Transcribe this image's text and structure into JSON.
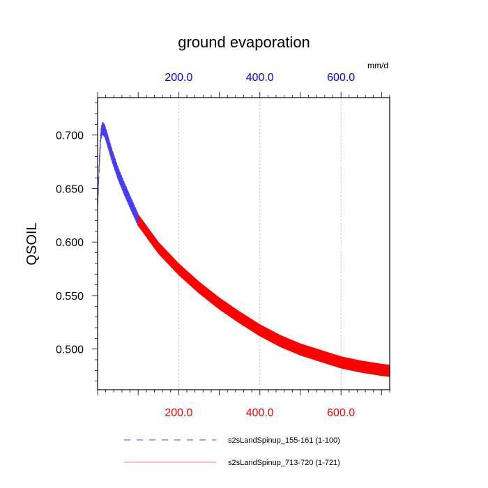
{
  "chart_data": {
    "type": "line",
    "title": "ground evaporation",
    "ylabel": "QSOIL",
    "top_axis_unit": "mm/d",
    "xlim": [
      0,
      720
    ],
    "ylim": [
      0.462,
      0.735
    ],
    "grid": {
      "x_dashed": true,
      "y": false
    },
    "x_ticks": [
      200,
      400,
      600
    ],
    "x_tick_labels": [
      "200.0",
      "400.0",
      "600.0"
    ],
    "y_ticks": [
      0.5,
      0.55,
      0.6,
      0.65,
      0.7
    ],
    "y_tick_labels": [
      "0.500",
      "0.550",
      "0.600",
      "0.650",
      "0.700"
    ],
    "colors": {
      "bottom_axis": "#ff0000",
      "top_axis": "#0000ff"
    },
    "legend": {
      "position": "bottom"
    },
    "series": [
      {
        "name": "s2sLandSpinup_155-161 (1-100)",
        "color": "#4040ff",
        "dash": "dashed",
        "x_range": [
          1,
          100
        ],
        "daily_amplitude": 0.012,
        "envelope": [
          [
            1,
            0.641
          ],
          [
            4,
            0.672
          ],
          [
            8,
            0.7
          ],
          [
            12,
            0.706
          ],
          [
            18,
            0.703
          ],
          [
            25,
            0.694
          ],
          [
            35,
            0.681
          ],
          [
            50,
            0.664
          ],
          [
            65,
            0.65
          ],
          [
            80,
            0.637
          ],
          [
            100,
            0.62
          ]
        ]
      },
      {
        "name": "s2sLandSpinup_713-720 (1-721)",
        "color": "#ff0000",
        "dash": "solid",
        "x_range": [
          1,
          721
        ],
        "daily_amplitude": 0.011,
        "envelope": [
          [
            1,
            0.641
          ],
          [
            4,
            0.672
          ],
          [
            8,
            0.7
          ],
          [
            12,
            0.706
          ],
          [
            18,
            0.703
          ],
          [
            25,
            0.694
          ],
          [
            35,
            0.681
          ],
          [
            50,
            0.664
          ],
          [
            65,
            0.65
          ],
          [
            80,
            0.637
          ],
          [
            100,
            0.62
          ],
          [
            150,
            0.594
          ],
          [
            200,
            0.574
          ],
          [
            250,
            0.557
          ],
          [
            300,
            0.542
          ],
          [
            350,
            0.529
          ],
          [
            400,
            0.517
          ],
          [
            450,
            0.507
          ],
          [
            500,
            0.499
          ],
          [
            550,
            0.493
          ],
          [
            600,
            0.487
          ],
          [
            650,
            0.483
          ],
          [
            700,
            0.48
          ],
          [
            721,
            0.479
          ]
        ]
      }
    ]
  }
}
